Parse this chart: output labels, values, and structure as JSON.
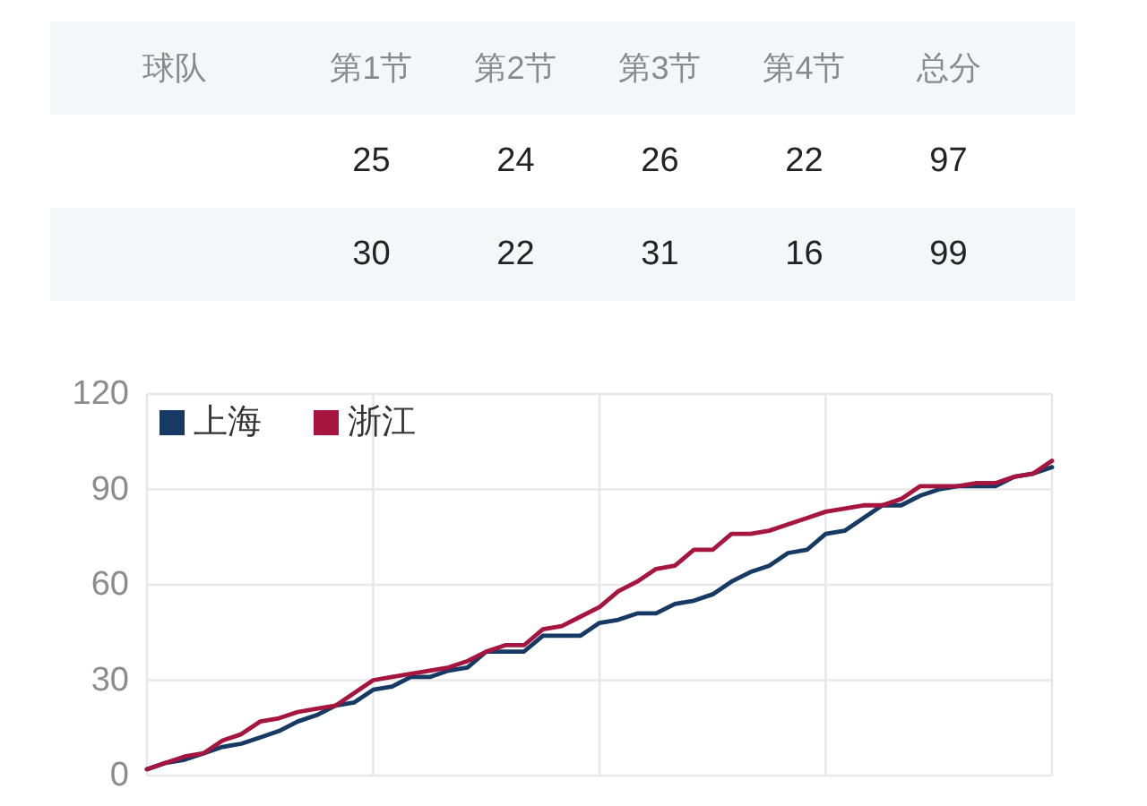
{
  "chart_data": [
    {
      "type": "other",
      "legend_title": "球队",
      "categories": [
        "第1节",
        "第2节",
        "第3节",
        "第4节",
        "总分"
      ],
      "series": [
        {
          "values": [
            25,
            24,
            26,
            22,
            97
          ]
        },
        {
          "values": [
            30,
            22,
            31,
            16,
            99
          ]
        }
      ],
      "data_labels": true
    },
    {
      "type": "line",
      "categories": [
        null,
        null,
        null,
        null,
        null,
        null,
        null,
        null,
        null,
        null,
        null,
        null,
        null,
        null,
        null,
        null,
        null,
        null,
        null,
        null,
        null,
        null,
        null,
        null,
        null,
        null,
        null,
        null,
        null,
        null,
        null,
        null,
        null,
        null,
        null,
        null,
        null,
        null,
        null,
        null,
        null,
        null,
        null,
        null,
        null,
        null,
        null,
        null,
        null
      ],
      "ylim": [
        0,
        120
      ],
      "yticks": [
        0,
        30,
        60,
        90,
        120
      ],
      "grid": true,
      "legend": "top left",
      "tick_labels": "y",
      "series": [
        {
          "name": "上海",
          "color": "#173a64",
          "values": [
            2,
            4,
            5,
            7,
            9,
            10,
            12,
            14,
            17,
            19,
            22,
            23,
            27,
            28,
            31,
            31,
            33,
            34,
            39,
            39,
            39,
            44,
            44,
            44,
            48,
            49,
            51,
            51,
            54,
            55,
            57,
            61,
            64,
            66,
            70,
            71,
            76,
            77,
            81,
            85,
            85,
            88,
            90,
            91,
            91,
            91,
            94,
            95,
            97
          ]
        },
        {
          "name": "浙江",
          "color": "#a5153f",
          "values": [
            2,
            4,
            6,
            7,
            11,
            13,
            17,
            18,
            20,
            21,
            22,
            26,
            30,
            31,
            32,
            33,
            34,
            36,
            39,
            41,
            41,
            46,
            47,
            50,
            53,
            58,
            61,
            65,
            66,
            71,
            71,
            76,
            76,
            77,
            79,
            81,
            83,
            84,
            85,
            85,
            87,
            91,
            91,
            91,
            92,
            92,
            94,
            95,
            99
          ]
        }
      ]
    }
  ]
}
